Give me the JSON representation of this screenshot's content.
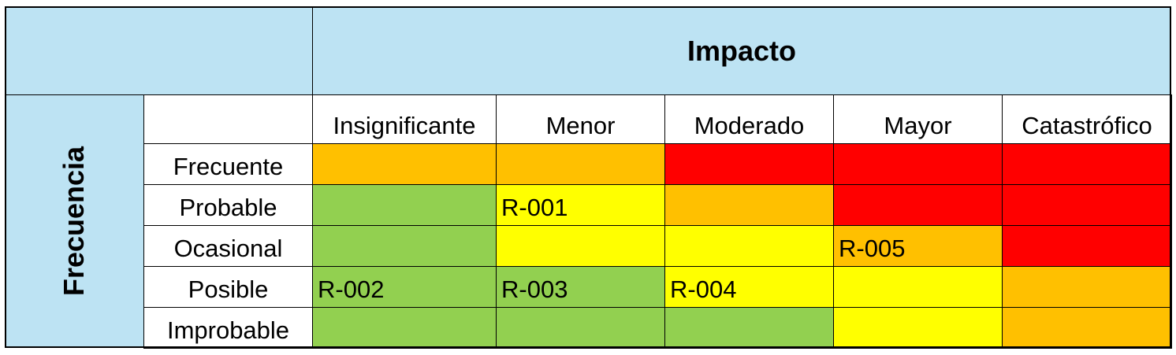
{
  "impact_header": "Impacto",
  "frequency_header": "Frecuencia",
  "impact_levels": [
    "Insignificante",
    "Menor",
    "Moderado",
    "Mayor",
    "Catastrófico"
  ],
  "frequency_levels": [
    "Frecuente",
    "Probable",
    "Ocasional",
    "Posible",
    "Improbable"
  ],
  "colors": {
    "header_bg": "#BDE3F3",
    "green": "#92D050",
    "yellow": "#FFFF00",
    "orange": "#FFC000",
    "red": "#FF0000"
  },
  "grid": [
    [
      {
        "color": "orange",
        "code": ""
      },
      {
        "color": "orange",
        "code": ""
      },
      {
        "color": "red",
        "code": ""
      },
      {
        "color": "red",
        "code": ""
      },
      {
        "color": "red",
        "code": ""
      }
    ],
    [
      {
        "color": "green",
        "code": ""
      },
      {
        "color": "yellow",
        "code": "R-001"
      },
      {
        "color": "orange",
        "code": ""
      },
      {
        "color": "red",
        "code": ""
      },
      {
        "color": "red",
        "code": ""
      }
    ],
    [
      {
        "color": "green",
        "code": ""
      },
      {
        "color": "yellow",
        "code": ""
      },
      {
        "color": "yellow",
        "code": ""
      },
      {
        "color": "orange",
        "code": "R-005"
      },
      {
        "color": "red",
        "code": ""
      }
    ],
    [
      {
        "color": "green",
        "code": "R-002"
      },
      {
        "color": "green",
        "code": "R-003"
      },
      {
        "color": "yellow",
        "code": "R-004"
      },
      {
        "color": "yellow",
        "code": ""
      },
      {
        "color": "orange",
        "code": ""
      }
    ],
    [
      {
        "color": "green",
        "code": ""
      },
      {
        "color": "green",
        "code": ""
      },
      {
        "color": "green",
        "code": ""
      },
      {
        "color": "yellow",
        "code": ""
      },
      {
        "color": "orange",
        "code": ""
      }
    ]
  ]
}
